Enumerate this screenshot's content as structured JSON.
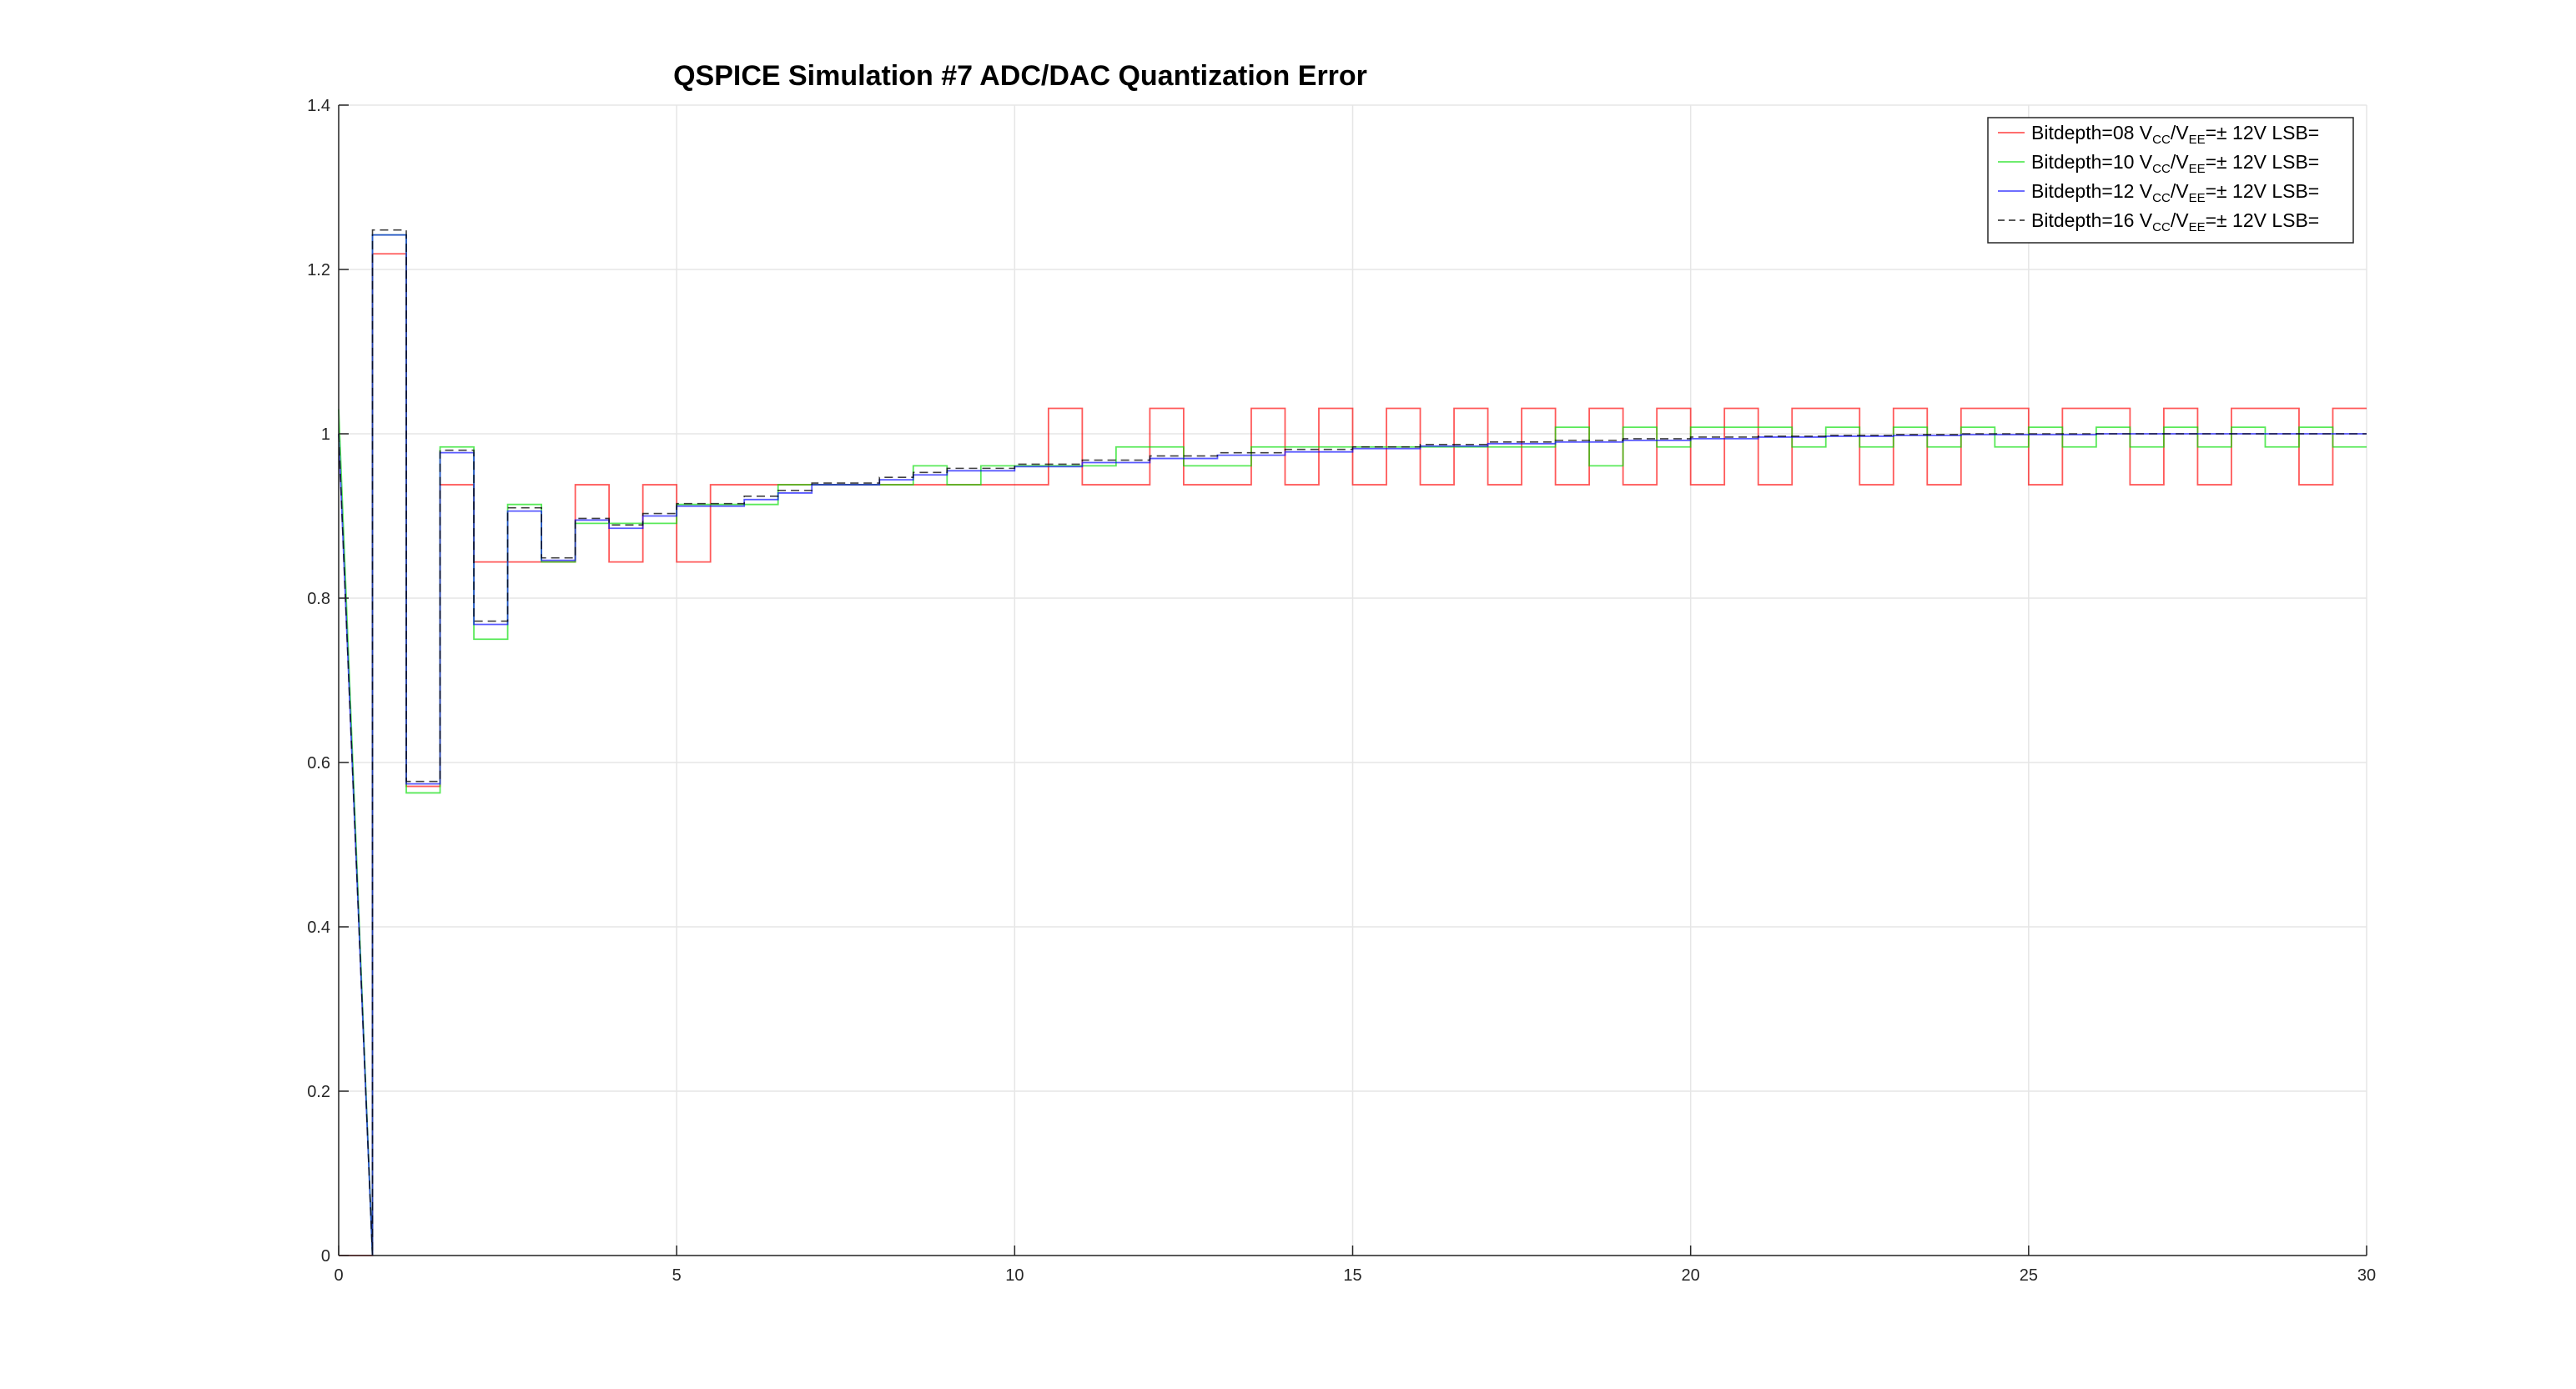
{
  "chart_data": {
    "type": "line",
    "title": "QSPICE Simulation #7 ADC/DAC Quantization Error",
    "xlabel": "",
    "ylabel": "",
    "xlim": [
      0,
      30
    ],
    "ylim": [
      0,
      1.4
    ],
    "xticks": [
      "0",
      "5",
      "10",
      "15",
      "20",
      "25",
      "30"
    ],
    "yticks": [
      "0",
      "0.2",
      "0.4",
      "0.6",
      "0.8",
      "1",
      "1.2",
      "1.4"
    ],
    "grid": true,
    "legend_position": "top-right",
    "colors": {
      "bit08": "#ff0000",
      "bit10": "#00dd00",
      "bit12": "#0000ff",
      "bit16": "#000000"
    },
    "series": [
      {
        "name": "Bitdepth=08 VCC/VEE=± 12V LSB=",
        "label_parts": {
          "prefix": "Bitdepth=08 V",
          "sub1": "CC",
          "mid": "/V",
          "sub2": "EE",
          "suffix": "=± 12V LSB="
        },
        "style": "solid",
        "x": [
          0,
          0.5,
          0.5,
          1,
          1,
          1.5,
          1.5,
          2,
          2,
          3,
          3,
          3.5,
          3.5,
          4,
          4,
          4.5,
          4.5,
          5,
          5,
          5.5,
          5.5,
          10.5,
          10.5,
          11,
          11,
          12,
          12,
          12.5,
          12.5,
          13.5,
          13.5,
          14,
          14,
          14.5,
          14.5,
          15,
          15,
          15.5,
          15.5,
          16,
          16,
          16.5,
          16.5,
          17,
          17,
          17.5,
          17.5,
          18,
          18,
          18.5,
          18.5,
          19,
          19,
          19.5,
          19.5,
          20,
          20,
          20.5,
          20.5,
          21,
          21,
          21.5,
          21.5,
          22.5,
          22.5,
          23,
          23,
          23.5,
          23.5,
          24,
          24,
          25,
          25,
          25.5,
          25.5,
          26.5,
          26.5,
          27,
          27,
          27.5,
          27.5,
          28,
          28,
          29,
          29,
          29.5,
          29.5,
          30
        ],
        "y": [
          0,
          0,
          1.219,
          1.219,
          0.571,
          0.571,
          0.938,
          0.938,
          0.844,
          0.844,
          0.844,
          0.844,
          0.938,
          0.938,
          0.844,
          0.844,
          0.938,
          0.938,
          0.844,
          0.844,
          0.938,
          0.938,
          1.031,
          1.031,
          0.938,
          0.938,
          1.031,
          1.031,
          0.938,
          0.938,
          1.031,
          1.031,
          0.938,
          0.938,
          1.031,
          1.031,
          0.938,
          0.938,
          1.031,
          1.031,
          0.938,
          0.938,
          1.031,
          1.031,
          0.938,
          0.938,
          1.031,
          1.031,
          0.938,
          0.938,
          1.031,
          1.031,
          0.938,
          0.938,
          1.031,
          1.031,
          0.938,
          0.938,
          1.031,
          1.031,
          0.938,
          0.938,
          1.031,
          1.031,
          0.938,
          0.938,
          1.031,
          1.031,
          0.938,
          0.938,
          1.031,
          1.031,
          0.938,
          0.938,
          1.031,
          1.031,
          0.938,
          0.938,
          1.031,
          1.031,
          0.938,
          0.938,
          1.031,
          1.031,
          0.938,
          0.938,
          1.031,
          1.031
        ]
      },
      {
        "name": "Bitdepth=10 VCC/VEE=± 12V LSB=",
        "label_parts": {
          "prefix": "Bitdepth=10 V",
          "sub1": "CC",
          "mid": "/V",
          "sub2": "EE",
          "suffix": "=± 12V LSB="
        },
        "style": "solid",
        "x": [
          0,
          0.5,
          0.5,
          1,
          1,
          1.5,
          1.5,
          2,
          2,
          2.5,
          2.5,
          3,
          3,
          3.5,
          3.5,
          4,
          4,
          4.5,
          4.5,
          5,
          5,
          6,
          6,
          6.5,
          6.5,
          7,
          7,
          8.5,
          8.5,
          9,
          9,
          9.5,
          9.5,
          10.5,
          10.5,
          11.5,
          11.5,
          12.5,
          12.5,
          13.5,
          13.5,
          14,
          14,
          18,
          18,
          18.5,
          18.5,
          19,
          19,
          19.5,
          19.5,
          20,
          20,
          21.5,
          21.5,
          22,
          22,
          22.5,
          22.5,
          23,
          23,
          23.5,
          23.5,
          24,
          24,
          24.5,
          24.5,
          25,
          25,
          25.5,
          25.5,
          26,
          26,
          26.5,
          26.5,
          27,
          27,
          27.5,
          27.5,
          28,
          28,
          28.5,
          28.5,
          29,
          29,
          29.5,
          29.5,
          30
        ],
        "y": [
          1.03,
          0,
          1.242,
          1.242,
          0.563,
          0.563,
          0.984,
          0.984,
          0.75,
          0.75,
          0.914,
          0.914,
          0.844,
          0.844,
          0.891,
          0.891,
          0.891,
          0.891,
          0.891,
          0.891,
          0.914,
          0.914,
          0.914,
          0.914,
          0.938,
          0.938,
          0.938,
          0.938,
          0.961,
          0.961,
          0.938,
          0.938,
          0.961,
          0.961,
          0.961,
          0.961,
          0.984,
          0.984,
          0.961,
          0.961,
          0.984,
          0.984,
          0.984,
          0.984,
          1.008,
          1.008,
          0.961,
          0.961,
          1.008,
          1.008,
          0.984,
          0.984,
          1.008,
          1.008,
          0.984,
          0.984,
          1.008,
          1.008,
          0.984,
          0.984,
          1.008,
          1.008,
          0.984,
          0.984,
          1.008,
          1.008,
          0.984,
          0.984,
          1.008,
          1.008,
          0.984,
          0.984,
          1.008,
          1.008,
          0.984,
          0.984,
          1.008,
          1.008,
          0.984,
          0.984,
          1.008,
          1.008,
          0.984,
          0.984,
          1.008,
          1.008,
          0.984,
          0.984
        ]
      },
      {
        "name": "Bitdepth=12 VCC/VEE=± 12V LSB=",
        "label_parts": {
          "prefix": "Bitdepth=12 V",
          "sub1": "CC",
          "mid": "/V",
          "sub2": "EE",
          "suffix": "=± 12V LSB="
        },
        "style": "solid",
        "x": [
          0,
          0.5,
          0.5,
          1,
          1,
          1.5,
          1.5,
          2,
          2,
          2.5,
          2.5,
          3,
          3,
          3.5,
          3.5,
          4,
          4,
          4.5,
          4.5,
          5,
          5,
          6,
          6,
          6.5,
          6.5,
          7,
          7,
          8,
          8,
          8.5,
          8.5,
          9,
          9,
          10,
          10,
          11,
          11,
          12,
          12,
          13,
          13,
          14,
          14,
          15,
          15,
          16,
          16,
          17,
          17,
          18,
          18,
          19,
          19,
          20,
          20,
          21,
          21,
          22,
          22,
          23,
          23,
          24,
          24,
          25,
          25,
          26,
          26,
          27,
          27,
          28,
          28,
          29,
          29,
          30
        ],
        "y": [
          1.0,
          0,
          1.242,
          1.242,
          0.574,
          0.574,
          0.977,
          0.977,
          0.768,
          0.768,
          0.906,
          0.906,
          0.846,
          0.846,
          0.895,
          0.895,
          0.885,
          0.885,
          0.9,
          0.9,
          0.912,
          0.912,
          0.92,
          0.92,
          0.928,
          0.928,
          0.938,
          0.938,
          0.944,
          0.944,
          0.95,
          0.95,
          0.955,
          0.955,
          0.96,
          0.96,
          0.965,
          0.965,
          0.97,
          0.97,
          0.974,
          0.974,
          0.978,
          0.978,
          0.982,
          0.982,
          0.985,
          0.985,
          0.988,
          0.988,
          0.99,
          0.99,
          0.992,
          0.992,
          0.994,
          0.994,
          0.996,
          0.996,
          0.997,
          0.997,
          0.998,
          0.998,
          0.999,
          0.999,
          0.999,
          0.999,
          1.0,
          1.0,
          1.0,
          1.0,
          1.0,
          1.0,
          1.0,
          1.0
        ]
      },
      {
        "name": "Bitdepth=16 VCC/VEE=± 12V LSB=",
        "label_parts": {
          "prefix": "Bitdepth=16 V",
          "sub1": "CC",
          "mid": "/V",
          "sub2": "EE",
          "suffix": "=± 12V LSB="
        },
        "style": "dashed",
        "x": [
          0,
          0.5,
          0.5,
          1,
          1,
          1.5,
          1.5,
          2,
          2,
          2.5,
          2.5,
          3,
          3,
          3.5,
          3.5,
          4,
          4,
          4.5,
          4.5,
          5,
          5,
          6,
          6,
          6.5,
          6.5,
          7,
          7,
          8,
          8,
          8.5,
          8.5,
          9,
          9,
          10,
          10,
          11,
          11,
          12,
          12,
          13,
          13,
          14,
          14,
          15,
          15,
          16,
          16,
          17,
          17,
          18,
          18,
          19,
          19,
          20,
          20,
          21,
          21,
          22,
          22,
          23,
          23,
          24,
          24,
          25,
          25,
          26,
          26,
          27,
          27,
          28,
          28,
          29,
          29,
          30
        ],
        "y": [
          1.0,
          0,
          1.248,
          1.248,
          0.577,
          0.577,
          0.98,
          0.98,
          0.772,
          0.772,
          0.91,
          0.91,
          0.849,
          0.849,
          0.897,
          0.897,
          0.889,
          0.889,
          0.903,
          0.903,
          0.915,
          0.915,
          0.924,
          0.924,
          0.931,
          0.931,
          0.94,
          0.94,
          0.947,
          0.947,
          0.953,
          0.953,
          0.958,
          0.958,
          0.963,
          0.963,
          0.968,
          0.968,
          0.973,
          0.973,
          0.977,
          0.977,
          0.981,
          0.981,
          0.984,
          0.984,
          0.987,
          0.987,
          0.99,
          0.99,
          0.992,
          0.992,
          0.994,
          0.994,
          0.996,
          0.996,
          0.997,
          0.997,
          0.998,
          0.998,
          0.999,
          0.999,
          1.0,
          1.0,
          1.0,
          1.0,
          1.0,
          1.0,
          1.0,
          1.0,
          1.0,
          1.0,
          1.0,
          1.0
        ]
      }
    ]
  }
}
